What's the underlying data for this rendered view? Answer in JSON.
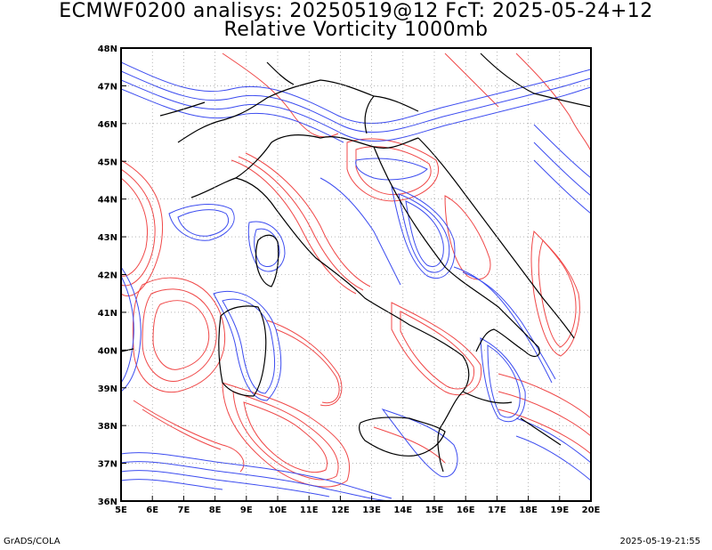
{
  "header": {
    "title_line1": "ECMWF0200 analisys: 20250519@12 FcT: 2025-05-24+12",
    "title_line2": "Relative Vorticity 1000mb"
  },
  "footer": {
    "left": "GrADS/COLA",
    "right": "2025-05-19-21:55"
  },
  "map": {
    "lon_range": [
      5,
      20
    ],
    "lat_range": [
      36,
      48
    ],
    "lon_labels": [
      "5E",
      "6E",
      "7E",
      "8E",
      "9E",
      "10E",
      "11E",
      "12E",
      "13E",
      "14E",
      "15E",
      "16E",
      "17E",
      "18E",
      "19E",
      "20E"
    ],
    "lat_labels": [
      "36N",
      "37N",
      "38N",
      "39N",
      "40N",
      "41N",
      "42N",
      "43N",
      "44N",
      "45N",
      "46N",
      "47N",
      "48N"
    ],
    "grid": "dotted",
    "colors": {
      "positive_contours": "#f04848",
      "negative_contours": "#3c4cf0",
      "coastline": "#000000"
    }
  }
}
